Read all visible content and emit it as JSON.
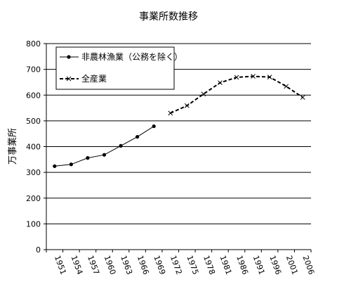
{
  "chart_data": {
    "type": "line",
    "title": "事業所数推移",
    "xlabel": "",
    "ylabel": "万事業所",
    "ylim": [
      0,
      800
    ],
    "yticks": [
      0,
      100,
      200,
      300,
      400,
      500,
      600,
      700,
      800
    ],
    "grid": true,
    "legend_position": "top-left",
    "categories": [
      "1951",
      "1954",
      "1957",
      "1960",
      "1963",
      "1966",
      "1969",
      "1972",
      "1975",
      "1978",
      "1981",
      "1986",
      "1991",
      "1996",
      "2001",
      "2006"
    ],
    "series": [
      {
        "name": "非農林漁業（公務を除く）",
        "marker": "dot",
        "line_style": "solid",
        "color": "#000000",
        "values": [
          324,
          331,
          356,
          368,
          403,
          438,
          479,
          null,
          null,
          null,
          null,
          null,
          null,
          null,
          null,
          null
        ]
      },
      {
        "name": "全産業",
        "marker": "x",
        "line_style": "dashed",
        "color": "#000000",
        "values": [
          null,
          null,
          null,
          null,
          null,
          null,
          null,
          530,
          559,
          604,
          648,
          669,
          673,
          670,
          634,
          591
        ]
      }
    ]
  }
}
